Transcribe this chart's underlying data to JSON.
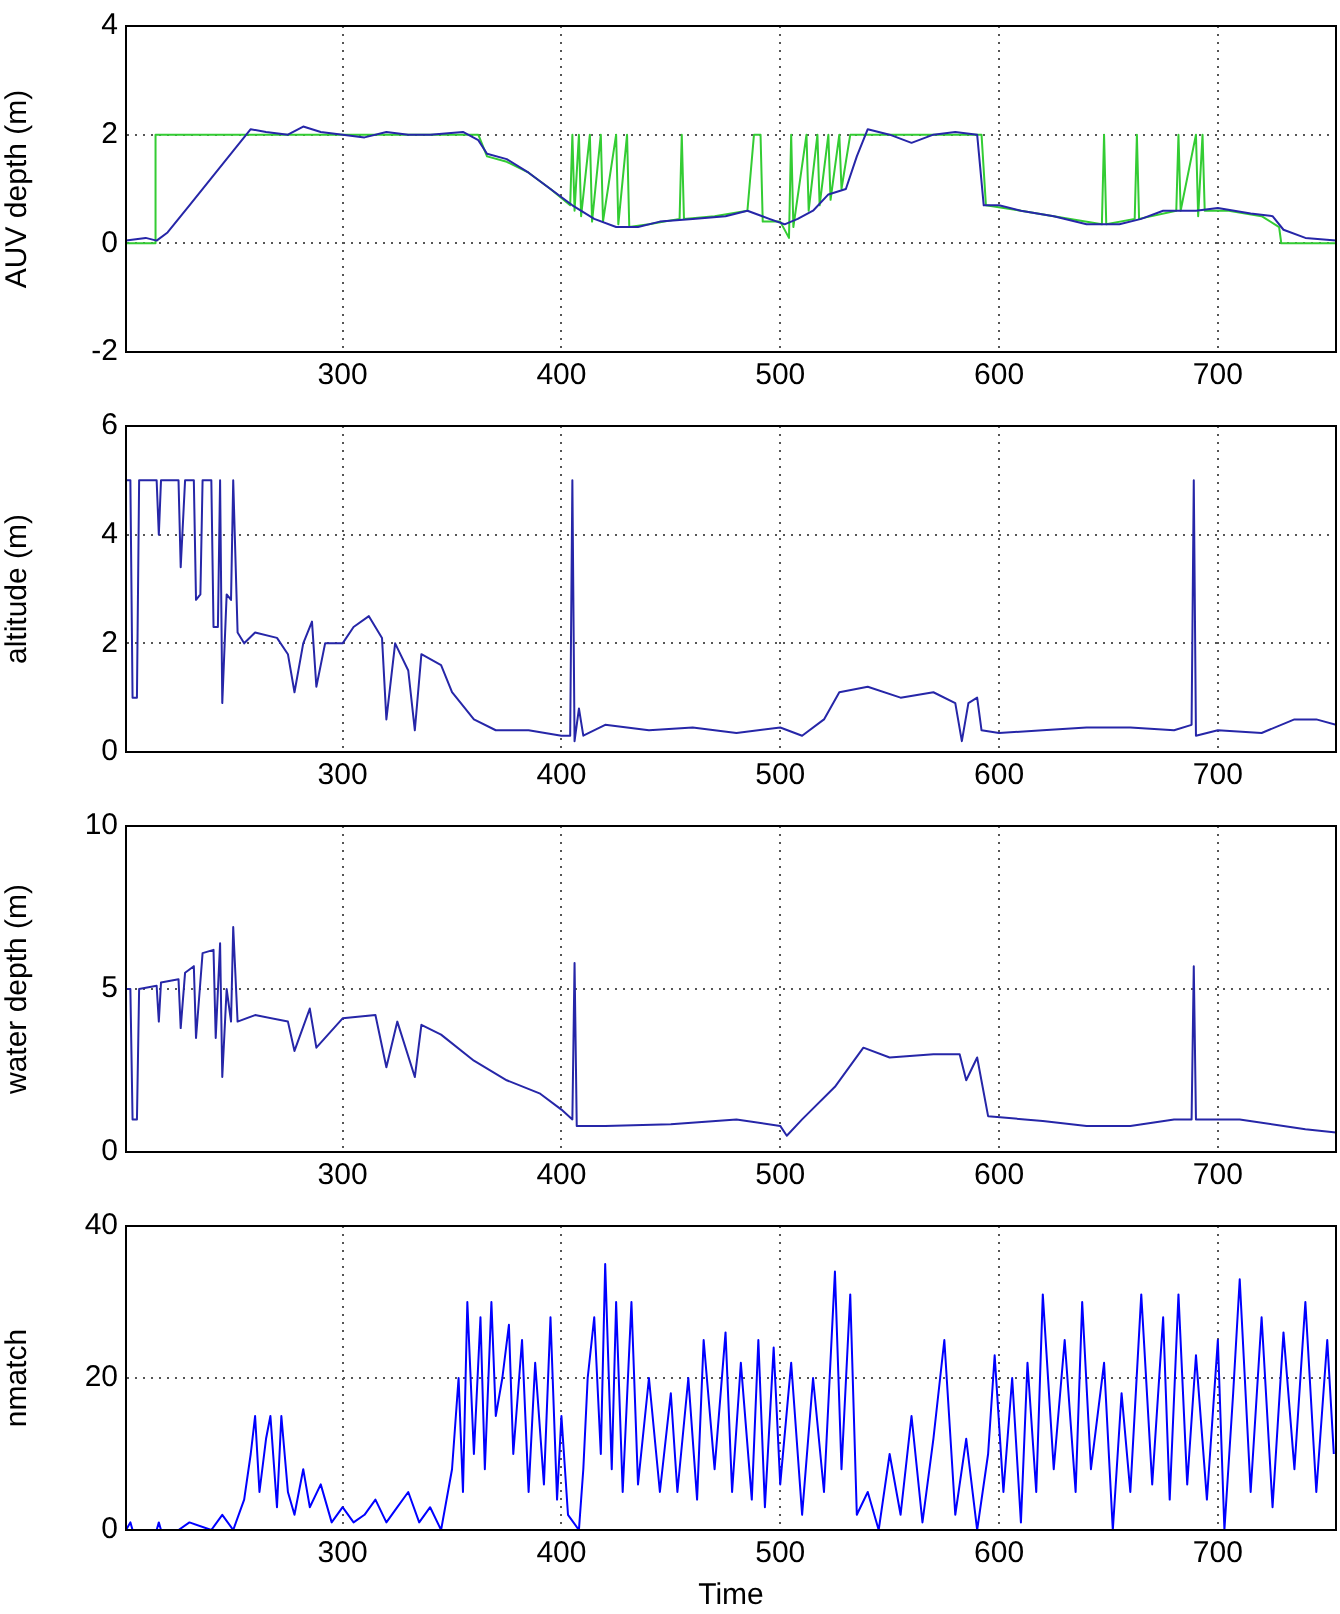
{
  "chart_data": [
    {
      "type": "line",
      "ylabel": "AUV depth (m)",
      "xlim": [
        201,
        754
      ],
      "xticks": [
        300,
        400,
        500,
        600,
        700
      ],
      "ylim": [
        -2,
        4
      ],
      "yticks": [
        -2,
        0,
        2,
        4
      ],
      "grid": true,
      "legend": false,
      "marker": "none",
      "line_style": "solid",
      "series": [
        {
          "color": "#2626a8",
          "x": [
            201,
            210,
            215,
            220,
            230,
            240,
            250,
            258,
            265,
            275,
            282,
            290,
            300,
            310,
            320,
            330,
            340,
            355,
            362,
            366,
            375,
            385,
            395,
            405,
            415,
            425,
            435,
            445,
            460,
            475,
            485,
            495,
            502,
            508,
            515,
            522,
            530,
            535,
            540,
            550,
            560,
            570,
            580,
            590,
            593,
            600,
            610,
            625,
            640,
            655,
            665,
            675,
            690,
            700,
            715,
            725,
            730,
            740,
            754
          ],
          "values": [
            0.05,
            0.1,
            0.05,
            0.2,
            0.7,
            1.2,
            1.7,
            2.1,
            2.05,
            2.0,
            2.15,
            2.05,
            2.0,
            1.95,
            2.05,
            2.0,
            2.0,
            2.05,
            1.9,
            1.65,
            1.55,
            1.3,
            1.0,
            0.7,
            0.45,
            0.3,
            0.3,
            0.4,
            0.45,
            0.5,
            0.6,
            0.45,
            0.35,
            0.45,
            0.6,
            0.9,
            1.0,
            1.6,
            2.1,
            2.0,
            1.85,
            2.0,
            2.05,
            2.0,
            0.7,
            0.7,
            0.6,
            0.5,
            0.35,
            0.35,
            0.45,
            0.6,
            0.6,
            0.65,
            0.55,
            0.5,
            0.25,
            0.1,
            0.05
          ]
        },
        {
          "color": "#33cc33",
          "x": [
            201,
            214,
            214.5,
            362,
            366,
            375,
            385,
            395,
            404,
            405,
            406,
            408,
            409,
            413,
            414,
            418,
            419,
            425,
            426,
            430,
            431,
            440,
            454,
            455,
            456,
            470,
            485,
            488,
            491,
            492,
            500,
            504,
            505,
            506,
            512,
            513,
            517,
            518,
            522,
            523,
            527,
            528,
            532,
            592,
            594,
            610,
            625,
            647,
            648,
            649,
            662,
            663,
            664,
            681,
            682,
            683,
            690,
            691,
            693,
            694,
            705,
            720,
            728,
            729,
            754
          ],
          "values": [
            0,
            0,
            2,
            2,
            1.6,
            1.5,
            1.3,
            1.0,
            0.7,
            2,
            0.6,
            2,
            0.5,
            2,
            0.4,
            2,
            0.4,
            2,
            0.35,
            2,
            0.3,
            0.35,
            0.45,
            2,
            0.45,
            0.5,
            0.6,
            2,
            2,
            0.4,
            0.4,
            0.1,
            2,
            0.3,
            2,
            0.6,
            2,
            0.7,
            2,
            0.8,
            2,
            1.0,
            2,
            2,
            0.7,
            0.6,
            0.5,
            0.35,
            2,
            0.35,
            0.45,
            2,
            0.45,
            0.6,
            2,
            0.6,
            2,
            0.5,
            2,
            0.6,
            0.6,
            0.5,
            0.3,
            0,
            0
          ]
        }
      ]
    },
    {
      "type": "line",
      "ylabel": "altitude (m)",
      "xlim": [
        201,
        754
      ],
      "xticks": [
        300,
        400,
        500,
        600,
        700
      ],
      "ylim": [
        0,
        6
      ],
      "yticks": [
        0,
        2,
        4,
        6
      ],
      "grid": true,
      "legend": false,
      "marker": "none",
      "line_style": "solid",
      "series": [
        {
          "color": "#2626a8",
          "x": [
            201,
            203,
            204,
            206,
            207,
            215,
            216,
            217,
            225,
            226,
            228,
            232,
            233,
            235,
            236,
            240,
            241,
            243,
            244,
            245,
            247,
            249,
            250,
            252,
            255,
            260,
            270,
            275,
            278,
            282,
            286,
            288,
            292,
            300,
            305,
            312,
            318,
            320,
            324,
            330,
            333,
            336,
            345,
            350,
            360,
            370,
            385,
            400,
            404,
            405,
            406,
            408,
            410,
            420,
            440,
            460,
            480,
            500,
            510,
            520,
            527,
            540,
            555,
            570,
            580,
            583,
            586,
            590,
            592,
            600,
            620,
            640,
            660,
            680,
            688,
            689,
            690,
            700,
            720,
            735,
            745,
            754
          ],
          "values": [
            5,
            5,
            1,
            1,
            5,
            5,
            4,
            5,
            5,
            3.4,
            5,
            5,
            2.8,
            2.9,
            5,
            5,
            2.3,
            2.3,
            5,
            0.9,
            2.9,
            2.8,
            5,
            2.2,
            2.0,
            2.2,
            2.1,
            1.8,
            1.1,
            2.0,
            2.4,
            1.2,
            2.0,
            2.0,
            2.3,
            2.5,
            2.1,
            0.6,
            2.0,
            1.5,
            0.4,
            1.8,
            1.6,
            1.1,
            0.6,
            0.4,
            0.4,
            0.3,
            0.3,
            5,
            0.2,
            0.8,
            0.3,
            0.5,
            0.4,
            0.45,
            0.35,
            0.45,
            0.3,
            0.6,
            1.1,
            1.2,
            1.0,
            1.1,
            0.9,
            0.2,
            0.9,
            1.0,
            0.4,
            0.35,
            0.4,
            0.45,
            0.45,
            0.4,
            0.5,
            5,
            0.3,
            0.4,
            0.35,
            0.6,
            0.6,
            0.5
          ]
        }
      ]
    },
    {
      "type": "line",
      "ylabel": "water depth (m)",
      "xlim": [
        201,
        754
      ],
      "xticks": [
        300,
        400,
        500,
        600,
        700
      ],
      "ylim": [
        0,
        10
      ],
      "yticks": [
        0,
        5,
        10
      ],
      "grid": true,
      "legend": false,
      "marker": "none",
      "line_style": "solid",
      "series": [
        {
          "color": "#2626a8",
          "x": [
            201,
            203,
            204,
            206,
            207,
            215,
            216,
            217,
            225,
            226,
            228,
            232,
            233,
            236,
            241,
            242,
            244,
            245,
            247,
            249,
            250,
            252,
            260,
            275,
            278,
            285,
            288,
            300,
            315,
            320,
            325,
            333,
            336,
            345,
            360,
            375,
            390,
            400,
            405,
            406,
            407,
            420,
            450,
            480,
            500,
            503,
            510,
            525,
            538,
            550,
            570,
            582,
            585,
            590,
            595,
            620,
            640,
            660,
            680,
            688,
            689,
            690,
            710,
            730,
            740,
            754
          ],
          "values": [
            5,
            5,
            1,
            1,
            5,
            5.1,
            4,
            5.2,
            5.3,
            3.8,
            5.5,
            5.7,
            3.5,
            6.1,
            6.2,
            3.5,
            6.4,
            2.3,
            5.0,
            4.0,
            6.9,
            4.0,
            4.2,
            4.0,
            3.1,
            4.4,
            3.2,
            4.1,
            4.2,
            2.6,
            4.0,
            2.3,
            3.9,
            3.6,
            2.8,
            2.2,
            1.8,
            1.3,
            1.0,
            5.8,
            0.8,
            0.8,
            0.85,
            1.0,
            0.8,
            0.5,
            1.0,
            2.0,
            3.2,
            2.9,
            3.0,
            3.0,
            2.2,
            2.9,
            1.1,
            0.95,
            0.8,
            0.8,
            1.0,
            1.0,
            5.7,
            1.0,
            1.0,
            0.8,
            0.7,
            0.6
          ]
        }
      ]
    },
    {
      "type": "line",
      "xlabel": "Time",
      "ylabel": "nmatch",
      "xlim": [
        201,
        754
      ],
      "xticks": [
        300,
        400,
        500,
        600,
        700
      ],
      "ylim": [
        0,
        40
      ],
      "yticks": [
        0,
        20,
        40
      ],
      "grid": true,
      "legend": false,
      "marker": "none",
      "line_style": "solid",
      "series": [
        {
          "color": "#0000ff",
          "x": [
            201,
            203,
            204,
            215,
            216,
            217,
            225,
            230,
            240,
            245,
            250,
            255,
            258,
            260,
            262,
            265,
            267,
            270,
            272,
            275,
            278,
            282,
            285,
            290,
            295,
            300,
            305,
            310,
            315,
            320,
            325,
            330,
            335,
            340,
            345,
            350,
            353,
            355,
            357,
            360,
            363,
            365,
            368,
            370,
            373,
            376,
            378,
            382,
            385,
            388,
            392,
            395,
            398,
            400,
            403,
            408,
            410,
            412,
            415,
            418,
            420,
            423,
            425,
            428,
            432,
            435,
            440,
            445,
            450,
            453,
            458,
            462,
            465,
            470,
            475,
            478,
            482,
            487,
            490,
            493,
            497,
            500,
            505,
            510,
            515,
            520,
            525,
            528,
            532,
            535,
            540,
            545,
            550,
            555,
            560,
            565,
            570,
            575,
            580,
            585,
            590,
            595,
            598,
            602,
            606,
            610,
            613,
            617,
            620,
            625,
            630,
            635,
            638,
            642,
            648,
            652,
            656,
            660,
            665,
            670,
            675,
            678,
            682,
            686,
            690,
            695,
            700,
            703,
            707,
            710,
            715,
            720,
            725,
            730,
            735,
            740,
            745,
            750,
            753
          ],
          "values": [
            0,
            1,
            0,
            0,
            1,
            0,
            0,
            1,
            0,
            2,
            0,
            4,
            10,
            15,
            5,
            12,
            15,
            3,
            15,
            5,
            2,
            8,
            3,
            6,
            1,
            3,
            1,
            2,
            4,
            1,
            3,
            5,
            1,
            3,
            0,
            8,
            20,
            5,
            30,
            10,
            28,
            8,
            30,
            15,
            20,
            27,
            10,
            25,
            5,
            22,
            6,
            28,
            4,
            15,
            2,
            0,
            8,
            20,
            28,
            10,
            35,
            8,
            30,
            5,
            30,
            6,
            20,
            5,
            18,
            5,
            20,
            4,
            25,
            8,
            26,
            5,
            22,
            4,
            25,
            3,
            24,
            6,
            22,
            2,
            20,
            5,
            34,
            8,
            31,
            2,
            5,
            0,
            10,
            2,
            15,
            1,
            12,
            25,
            2,
            12,
            0,
            10,
            23,
            5,
            20,
            1,
            22,
            5,
            31,
            8,
            25,
            5,
            30,
            8,
            22,
            0,
            18,
            5,
            31,
            6,
            28,
            4,
            31,
            6,
            23,
            4,
            25,
            0,
            18,
            33,
            5,
            28,
            3,
            26,
            8,
            30,
            5,
            25,
            10
          ]
        }
      ]
    }
  ]
}
